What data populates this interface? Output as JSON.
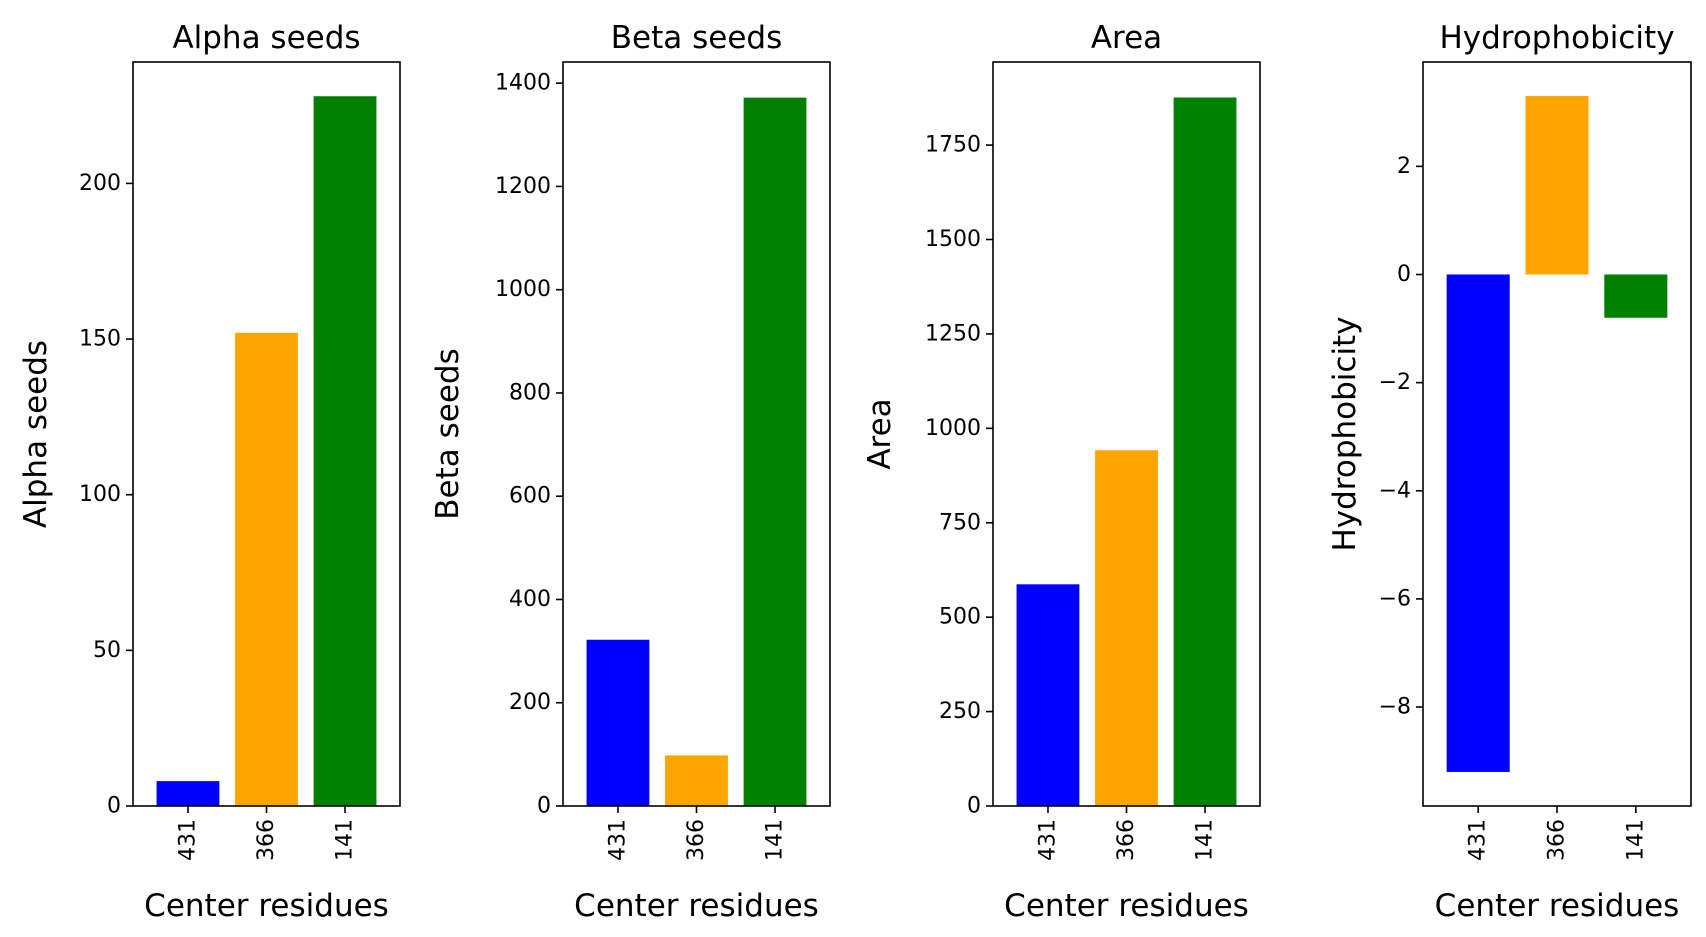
{
  "chart_data": [
    {
      "type": "bar",
      "title": "Alpha seeds",
      "xlabel": "Center residues",
      "ylabel": "Alpha seeds",
      "categories": [
        "431",
        "366",
        "141"
      ],
      "values": [
        8,
        152,
        228
      ],
      "colors": [
        "#0000ff",
        "#ffa500",
        "#008000"
      ],
      "ylim": [
        0,
        239
      ],
      "yticks": [
        0,
        50,
        100,
        150,
        200
      ],
      "ytick_labels": [
        "0",
        "50",
        "100",
        "150",
        "200"
      ],
      "grid": false,
      "legend": "none"
    },
    {
      "type": "bar",
      "title": "Beta seeds",
      "xlabel": "Center residues",
      "ylabel": "Beta seeds",
      "categories": [
        "431",
        "366",
        "141"
      ],
      "values": [
        322,
        98,
        1372
      ],
      "colors": [
        "#0000ff",
        "#ffa500",
        "#008000"
      ],
      "ylim": [
        0,
        1441
      ],
      "yticks": [
        0,
        200,
        400,
        600,
        800,
        1000,
        1200,
        1400
      ],
      "ytick_labels": [
        "0",
        "200",
        "400",
        "600",
        "800",
        "1000",
        "1200",
        "1400"
      ],
      "grid": false,
      "legend": "none"
    },
    {
      "type": "bar",
      "title": "Area",
      "xlabel": "Center residues",
      "ylabel": "Area",
      "categories": [
        "431",
        "366",
        "141"
      ],
      "values": [
        587,
        942,
        1876
      ],
      "colors": [
        "#0000ff",
        "#ffa500",
        "#008000"
      ],
      "ylim": [
        0,
        1970
      ],
      "yticks": [
        0,
        250,
        500,
        750,
        1000,
        1250,
        1500,
        1750
      ],
      "ytick_labels": [
        "0",
        "250",
        "500",
        "750",
        "1000",
        "1250",
        "1500",
        "1750"
      ],
      "grid": false,
      "legend": "none"
    },
    {
      "type": "bar",
      "title": "Hydrophobicity",
      "xlabel": "Center residues",
      "ylabel": "Hydrophobicity",
      "categories": [
        "431",
        "366",
        "141"
      ],
      "values": [
        -9.2,
        3.3,
        -0.8
      ],
      "colors": [
        "#0000ff",
        "#ffa500",
        "#008000"
      ],
      "ylim": [
        -9.83,
        3.93
      ],
      "yticks": [
        2,
        0,
        -2,
        -4,
        -6,
        -8
      ],
      "ytick_labels": [
        "2",
        "0",
        "−2",
        "−4",
        "−6",
        "−8"
      ],
      "grid": false,
      "legend": "none"
    }
  ]
}
